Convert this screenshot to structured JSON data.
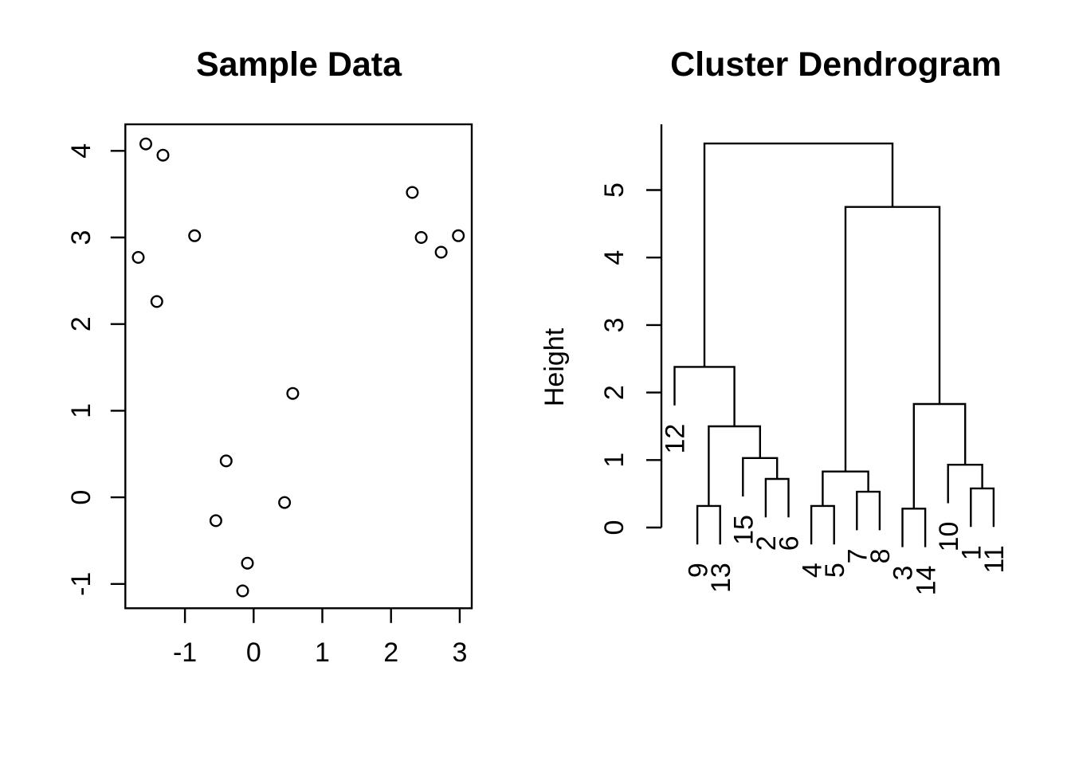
{
  "colors": {
    "foreground": "#000000",
    "background": "#ffffff"
  },
  "chart_data": [
    {
      "type": "scatter",
      "title": "Sample Data",
      "xlabel": "",
      "ylabel": "",
      "marker": "open-circle",
      "xlim": [
        -1.87,
        3.17
      ],
      "ylim": [
        -1.29,
        4.29
      ],
      "x_ticks": [
        -1,
        0,
        1,
        2,
        3
      ],
      "y_ticks": [
        -1,
        0,
        1,
        2,
        3,
        4
      ],
      "points": [
        [
          -1.57,
          4.08
        ],
        [
          -1.32,
          3.95
        ],
        [
          2.31,
          3.52
        ],
        [
          -0.86,
          3.02
        ],
        [
          2.44,
          3.0
        ],
        [
          2.98,
          3.02
        ],
        [
          2.73,
          2.83
        ],
        [
          -1.68,
          2.77
        ],
        [
          -1.41,
          2.26
        ],
        [
          0.57,
          1.2
        ],
        [
          -0.4,
          0.42
        ],
        [
          0.45,
          -0.06
        ],
        [
          -0.55,
          -0.27
        ],
        [
          -0.09,
          -0.76
        ],
        [
          -0.16,
          -1.08
        ]
      ]
    },
    {
      "type": "dendrogram",
      "title": "Cluster Dendrogram",
      "ylabel": "Height",
      "y_ticks": [
        0,
        1,
        2,
        3,
        4,
        5
      ],
      "ylim": [
        0,
        5.97
      ],
      "leaf_hang": 0.57,
      "leaf_order": [
        "12",
        "9",
        "13",
        "15",
        "2",
        "6",
        "4",
        "5",
        "7",
        "8",
        "3",
        "14",
        "10",
        "1",
        "11"
      ],
      "merges": [
        {
          "id": "m1",
          "children": [
            "9",
            "13"
          ],
          "height": 0.32
        },
        {
          "id": "m2",
          "children": [
            "2",
            "6"
          ],
          "height": 0.72
        },
        {
          "id": "m3",
          "children": [
            "15",
            "m2"
          ],
          "height": 1.03
        },
        {
          "id": "m4",
          "children": [
            "m1",
            "m3"
          ],
          "height": 1.5
        },
        {
          "id": "m5",
          "children": [
            "12",
            "m4"
          ],
          "height": 2.38
        },
        {
          "id": "m6",
          "children": [
            "4",
            "5"
          ],
          "height": 0.32
        },
        {
          "id": "m7",
          "children": [
            "7",
            "8"
          ],
          "height": 0.53
        },
        {
          "id": "m8",
          "children": [
            "m6",
            "m7"
          ],
          "height": 0.83
        },
        {
          "id": "m9",
          "children": [
            "3",
            "14"
          ],
          "height": 0.28
        },
        {
          "id": "m10",
          "children": [
            "1",
            "11"
          ],
          "height": 0.58
        },
        {
          "id": "m11",
          "children": [
            "10",
            "m10"
          ],
          "height": 0.93
        },
        {
          "id": "m12",
          "children": [
            "m9",
            "m11"
          ],
          "height": 1.83
        },
        {
          "id": "m13",
          "children": [
            "m8",
            "m12"
          ],
          "height": 4.75
        },
        {
          "id": "m14",
          "children": [
            "m5",
            "m13"
          ],
          "height": 5.69
        }
      ]
    }
  ]
}
